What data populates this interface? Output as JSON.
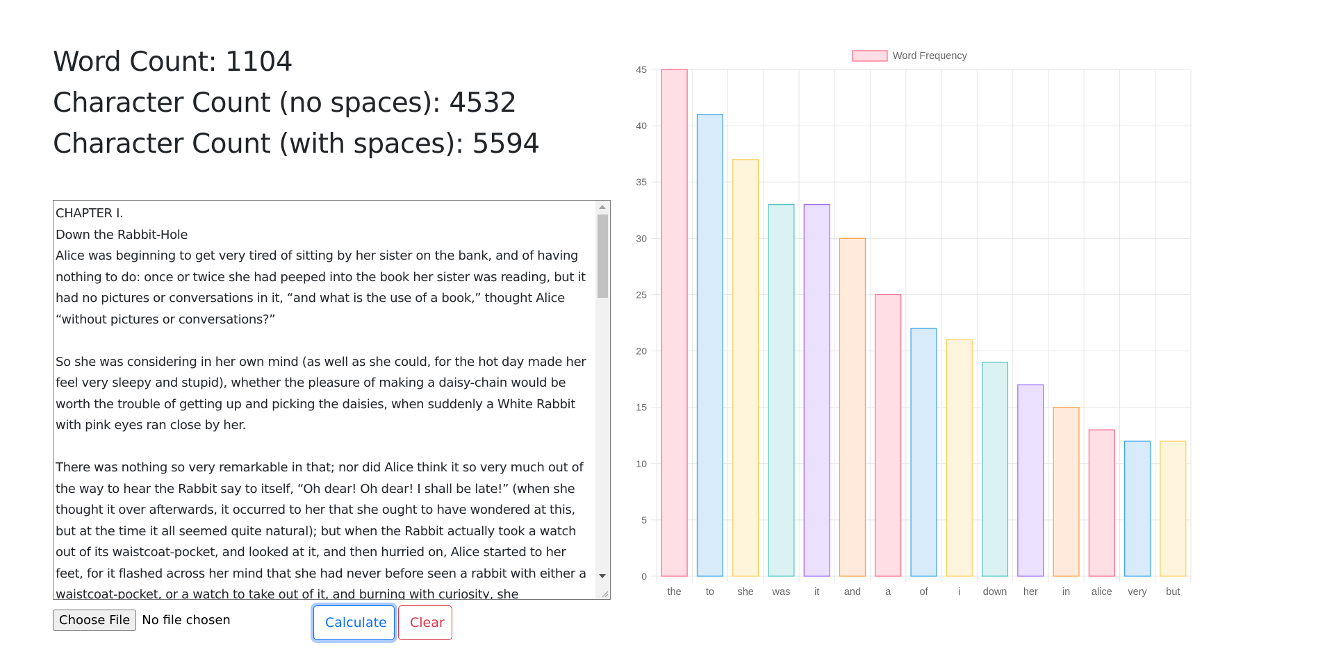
{
  "stats": {
    "word_count": "Word Count: 1104",
    "char_no_spaces": "Character Count (no spaces): 4532",
    "char_with_spaces": "Character Count (with spaces): 5594"
  },
  "editor": {
    "text": "CHAPTER I.\nDown the Rabbit-Hole\nAlice was beginning to get very tired of sitting by her sister on the bank, and of having nothing to do: once or twice she had peeped into the book her sister was reading, but it had no pictures or conversations in it, “and what is the use of a book,” thought Alice “without pictures or conversations?”\n\nSo she was considering in her own mind (as well as she could, for the hot day made her feel very sleepy and stupid), whether the pleasure of making a daisy-chain would be worth the trouble of getting up and picking the daisies, when suddenly a White Rabbit with pink eyes ran close by her.\n\nThere was nothing so very remarkable in that; nor did Alice think it so very much out of the way to hear the Rabbit say to itself, “Oh dear! Oh dear! I shall be late!” (when she thought it over afterwards, it occurred to her that she ought to have wondered at this, but at the time it all seemed quite natural); but when the Rabbit actually took a watch out of its waistcoat-pocket, and looked at it, and then hurried on, Alice started to her feet, for it flashed across her mind that she had never before seen a rabbit with either a waistcoat-pocket, or a watch to take out of it, and burning with curiosity, she"
  },
  "file_input": {
    "button_label": "Choose File",
    "status": "No file chosen"
  },
  "buttons": {
    "calculate": "Calculate",
    "clear": "Clear"
  },
  "chart_data": {
    "type": "bar",
    "categories": [
      "the",
      "to",
      "she",
      "was",
      "it",
      "and",
      "a",
      "of",
      "i",
      "down",
      "her",
      "in",
      "alice",
      "very",
      "but"
    ],
    "series": [
      {
        "name": "Word Frequency",
        "values": [
          45,
          41,
          37,
          33,
          33,
          30,
          25,
          22,
          21,
          19,
          17,
          15,
          13,
          12,
          12
        ]
      }
    ],
    "ylim": [
      0,
      45
    ],
    "yticks": [
      0,
      5,
      10,
      15,
      20,
      25,
      30,
      35,
      40,
      45
    ],
    "grid": true,
    "legend": "top-center",
    "colors": {
      "fills": [
        "#ffdee5",
        "#d7ebfa",
        "#fff4dc",
        "#dbf2f2",
        "#ebe1ff",
        "#ffeadb"
      ],
      "borders": [
        "#ff6384",
        "#36a2eb",
        "#ffcd56",
        "#4bc0c0",
        "#9966ff",
        "#ff9f40"
      ]
    }
  }
}
